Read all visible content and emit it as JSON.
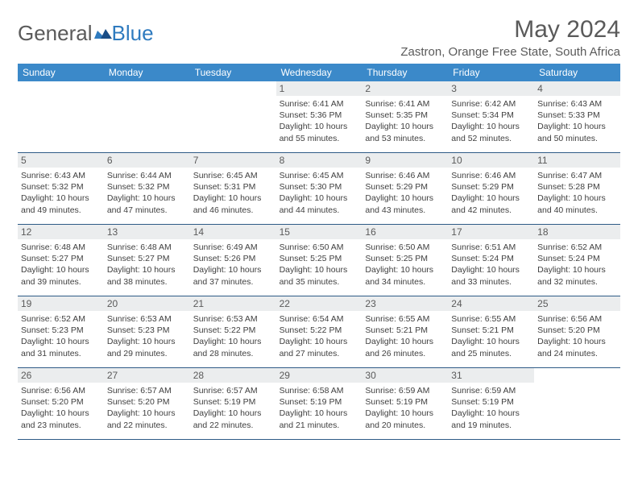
{
  "logo": {
    "part1": "General",
    "part2": "Blue"
  },
  "title": "May 2024",
  "location": "Zastron, Orange Free State, South Africa",
  "colors": {
    "header_bg": "#3b89c9",
    "header_text": "#ffffff",
    "daynum_bg": "#ebedee",
    "text_gray": "#5a5a5a",
    "body_text": "#404040",
    "rule": "#2e5b86",
    "logo_blue": "#2f7bbf"
  },
  "weekdays": [
    "Sunday",
    "Monday",
    "Tuesday",
    "Wednesday",
    "Thursday",
    "Friday",
    "Saturday"
  ],
  "weeks": [
    [
      null,
      null,
      null,
      {
        "n": "1",
        "sr": "6:41 AM",
        "ss": "5:36 PM",
        "dl": "10 hours and 55 minutes."
      },
      {
        "n": "2",
        "sr": "6:41 AM",
        "ss": "5:35 PM",
        "dl": "10 hours and 53 minutes."
      },
      {
        "n": "3",
        "sr": "6:42 AM",
        "ss": "5:34 PM",
        "dl": "10 hours and 52 minutes."
      },
      {
        "n": "4",
        "sr": "6:43 AM",
        "ss": "5:33 PM",
        "dl": "10 hours and 50 minutes."
      }
    ],
    [
      {
        "n": "5",
        "sr": "6:43 AM",
        "ss": "5:32 PM",
        "dl": "10 hours and 49 minutes."
      },
      {
        "n": "6",
        "sr": "6:44 AM",
        "ss": "5:32 PM",
        "dl": "10 hours and 47 minutes."
      },
      {
        "n": "7",
        "sr": "6:45 AM",
        "ss": "5:31 PM",
        "dl": "10 hours and 46 minutes."
      },
      {
        "n": "8",
        "sr": "6:45 AM",
        "ss": "5:30 PM",
        "dl": "10 hours and 44 minutes."
      },
      {
        "n": "9",
        "sr": "6:46 AM",
        "ss": "5:29 PM",
        "dl": "10 hours and 43 minutes."
      },
      {
        "n": "10",
        "sr": "6:46 AM",
        "ss": "5:29 PM",
        "dl": "10 hours and 42 minutes."
      },
      {
        "n": "11",
        "sr": "6:47 AM",
        "ss": "5:28 PM",
        "dl": "10 hours and 40 minutes."
      }
    ],
    [
      {
        "n": "12",
        "sr": "6:48 AM",
        "ss": "5:27 PM",
        "dl": "10 hours and 39 minutes."
      },
      {
        "n": "13",
        "sr": "6:48 AM",
        "ss": "5:27 PM",
        "dl": "10 hours and 38 minutes."
      },
      {
        "n": "14",
        "sr": "6:49 AM",
        "ss": "5:26 PM",
        "dl": "10 hours and 37 minutes."
      },
      {
        "n": "15",
        "sr": "6:50 AM",
        "ss": "5:25 PM",
        "dl": "10 hours and 35 minutes."
      },
      {
        "n": "16",
        "sr": "6:50 AM",
        "ss": "5:25 PM",
        "dl": "10 hours and 34 minutes."
      },
      {
        "n": "17",
        "sr": "6:51 AM",
        "ss": "5:24 PM",
        "dl": "10 hours and 33 minutes."
      },
      {
        "n": "18",
        "sr": "6:52 AM",
        "ss": "5:24 PM",
        "dl": "10 hours and 32 minutes."
      }
    ],
    [
      {
        "n": "19",
        "sr": "6:52 AM",
        "ss": "5:23 PM",
        "dl": "10 hours and 31 minutes."
      },
      {
        "n": "20",
        "sr": "6:53 AM",
        "ss": "5:23 PM",
        "dl": "10 hours and 29 minutes."
      },
      {
        "n": "21",
        "sr": "6:53 AM",
        "ss": "5:22 PM",
        "dl": "10 hours and 28 minutes."
      },
      {
        "n": "22",
        "sr": "6:54 AM",
        "ss": "5:22 PM",
        "dl": "10 hours and 27 minutes."
      },
      {
        "n": "23",
        "sr": "6:55 AM",
        "ss": "5:21 PM",
        "dl": "10 hours and 26 minutes."
      },
      {
        "n": "24",
        "sr": "6:55 AM",
        "ss": "5:21 PM",
        "dl": "10 hours and 25 minutes."
      },
      {
        "n": "25",
        "sr": "6:56 AM",
        "ss": "5:20 PM",
        "dl": "10 hours and 24 minutes."
      }
    ],
    [
      {
        "n": "26",
        "sr": "6:56 AM",
        "ss": "5:20 PM",
        "dl": "10 hours and 23 minutes."
      },
      {
        "n": "27",
        "sr": "6:57 AM",
        "ss": "5:20 PM",
        "dl": "10 hours and 22 minutes."
      },
      {
        "n": "28",
        "sr": "6:57 AM",
        "ss": "5:19 PM",
        "dl": "10 hours and 22 minutes."
      },
      {
        "n": "29",
        "sr": "6:58 AM",
        "ss": "5:19 PM",
        "dl": "10 hours and 21 minutes."
      },
      {
        "n": "30",
        "sr": "6:59 AM",
        "ss": "5:19 PM",
        "dl": "10 hours and 20 minutes."
      },
      {
        "n": "31",
        "sr": "6:59 AM",
        "ss": "5:19 PM",
        "dl": "10 hours and 19 minutes."
      },
      null
    ]
  ],
  "labels": {
    "sunrise": "Sunrise:",
    "sunset": "Sunset:",
    "daylight": "Daylight:"
  }
}
